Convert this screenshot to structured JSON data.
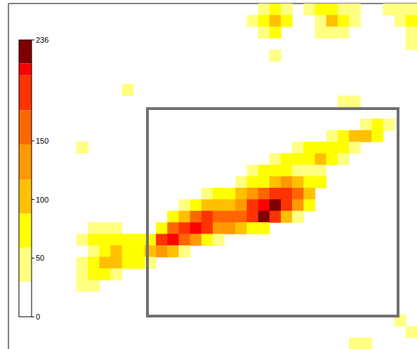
{
  "chart_data": {
    "type": "heatmap",
    "tick_labels": false,
    "xlim": [
      0,
      36
    ],
    "ylim": [
      0,
      30
    ],
    "colorbar": {
      "range": [
        0,
        236
      ],
      "ticks": [
        0,
        50,
        100,
        150,
        236
      ],
      "levels": [
        0,
        30,
        59,
        88,
        117,
        147,
        176,
        206,
        216,
        236
      ],
      "colors": [
        "#ffffff",
        "#ffff80",
        "#ffff00",
        "#ffc000",
        "#ff9900",
        "#ff6600",
        "#ff3300",
        "#ff0000",
        "#800000"
      ]
    },
    "cells": [
      [
        22,
        0,
        50
      ],
      [
        23,
        0,
        60
      ],
      [
        24,
        0,
        40
      ],
      [
        26,
        0,
        40
      ],
      [
        27,
        0,
        60
      ],
      [
        28,
        0,
        70
      ],
      [
        29,
        0,
        50
      ],
      [
        30,
        0,
        40
      ],
      [
        33,
        0,
        40
      ],
      [
        34,
        0,
        50
      ],
      [
        35,
        0,
        40
      ],
      [
        21,
        1,
        40
      ],
      [
        22,
        1,
        80
      ],
      [
        23,
        1,
        110
      ],
      [
        24,
        1,
        60
      ],
      [
        27,
        1,
        50
      ],
      [
        28,
        1,
        90
      ],
      [
        29,
        1,
        60
      ],
      [
        30,
        1,
        45
      ],
      [
        34,
        1,
        45
      ],
      [
        35,
        1,
        60
      ],
      [
        22,
        2,
        50
      ],
      [
        23,
        2,
        60
      ],
      [
        27,
        2,
        40
      ],
      [
        28,
        2,
        50
      ],
      [
        29,
        2,
        40
      ],
      [
        35,
        2,
        40
      ],
      [
        35,
        3,
        35
      ],
      [
        23,
        4,
        35
      ],
      [
        10,
        7,
        35
      ],
      [
        29,
        8,
        40
      ],
      [
        30,
        8,
        35
      ],
      [
        31,
        10,
        40
      ],
      [
        32,
        10,
        60
      ],
      [
        33,
        10,
        45
      ],
      [
        28,
        11,
        40
      ],
      [
        29,
        11,
        60
      ],
      [
        30,
        11,
        90
      ],
      [
        31,
        11,
        110
      ],
      [
        32,
        11,
        60
      ],
      [
        6,
        12,
        35
      ],
      [
        25,
        12,
        40
      ],
      [
        26,
        12,
        60
      ],
      [
        27,
        12,
        70
      ],
      [
        28,
        12,
        80
      ],
      [
        29,
        12,
        60
      ],
      [
        30,
        12,
        50
      ],
      [
        23,
        13,
        45
      ],
      [
        24,
        13,
        60
      ],
      [
        25,
        13,
        80
      ],
      [
        26,
        13,
        70
      ],
      [
        27,
        13,
        95
      ],
      [
        28,
        13,
        60
      ],
      [
        29,
        13,
        40
      ],
      [
        21,
        14,
        40
      ],
      [
        22,
        14,
        60
      ],
      [
        23,
        14,
        70
      ],
      [
        24,
        14,
        60
      ],
      [
        25,
        14,
        55
      ],
      [
        26,
        14,
        50
      ],
      [
        27,
        14,
        40
      ],
      [
        20,
        15,
        45
      ],
      [
        21,
        15,
        60
      ],
      [
        22,
        15,
        80
      ],
      [
        23,
        15,
        100
      ],
      [
        24,
        15,
        130
      ],
      [
        25,
        15,
        110
      ],
      [
        26,
        15,
        80
      ],
      [
        27,
        15,
        60
      ],
      [
        17,
        16,
        40
      ],
      [
        18,
        16,
        60
      ],
      [
        19,
        16,
        70
      ],
      [
        20,
        16,
        90
      ],
      [
        21,
        16,
        120
      ],
      [
        22,
        16,
        160
      ],
      [
        23,
        16,
        190
      ],
      [
        24,
        16,
        180
      ],
      [
        25,
        16,
        150
      ],
      [
        26,
        16,
        90
      ],
      [
        15,
        17,
        50
      ],
      [
        16,
        17,
        70
      ],
      [
        17,
        17,
        90
      ],
      [
        18,
        17,
        100
      ],
      [
        19,
        17,
        110
      ],
      [
        20,
        17,
        140
      ],
      [
        21,
        17,
        180
      ],
      [
        22,
        17,
        210
      ],
      [
        23,
        17,
        236
      ],
      [
        24,
        17,
        200
      ],
      [
        25,
        17,
        120
      ],
      [
        26,
        17,
        60
      ],
      [
        14,
        18,
        60
      ],
      [
        15,
        18,
        110
      ],
      [
        16,
        18,
        170
      ],
      [
        17,
        18,
        190
      ],
      [
        18,
        18,
        150
      ],
      [
        19,
        18,
        170
      ],
      [
        20,
        18,
        160
      ],
      [
        21,
        18,
        190
      ],
      [
        22,
        18,
        220
      ],
      [
        23,
        18,
        200
      ],
      [
        24,
        18,
        110
      ],
      [
        25,
        18,
        50
      ],
      [
        7,
        19,
        40
      ],
      [
        8,
        19,
        50
      ],
      [
        9,
        19,
        40
      ],
      [
        13,
        19,
        70
      ],
      [
        14,
        19,
        160
      ],
      [
        15,
        19,
        200
      ],
      [
        16,
        19,
        210
      ],
      [
        17,
        19,
        180
      ],
      [
        18,
        19,
        140
      ],
      [
        19,
        19,
        120
      ],
      [
        20,
        19,
        100
      ],
      [
        21,
        19,
        80
      ],
      [
        22,
        19,
        60
      ],
      [
        6,
        20,
        40
      ],
      [
        7,
        20,
        60
      ],
      [
        8,
        20,
        70
      ],
      [
        9,
        20,
        60
      ],
      [
        10,
        20,
        60
      ],
      [
        11,
        20,
        70
      ],
      [
        12,
        20,
        70
      ],
      [
        13,
        20,
        180
      ],
      [
        14,
        20,
        210
      ],
      [
        15,
        20,
        170
      ],
      [
        16,
        20,
        120
      ],
      [
        17,
        20,
        80
      ],
      [
        18,
        20,
        50
      ],
      [
        7,
        21,
        50
      ],
      [
        8,
        21,
        80
      ],
      [
        9,
        21,
        90
      ],
      [
        10,
        21,
        80
      ],
      [
        11,
        21,
        60
      ],
      [
        12,
        21,
        90
      ],
      [
        13,
        21,
        120
      ],
      [
        14,
        21,
        90
      ],
      [
        15,
        21,
        50
      ],
      [
        6,
        22,
        40
      ],
      [
        7,
        22,
        60
      ],
      [
        8,
        22,
        90
      ],
      [
        9,
        22,
        110
      ],
      [
        10,
        22,
        80
      ],
      [
        11,
        22,
        70
      ],
      [
        12,
        22,
        50
      ],
      [
        6,
        23,
        50
      ],
      [
        7,
        23,
        70
      ],
      [
        8,
        23,
        60
      ],
      [
        9,
        23,
        40
      ],
      [
        6,
        24,
        35
      ],
      [
        7,
        24,
        40
      ],
      [
        34,
        27,
        40
      ],
      [
        35,
        28,
        50
      ],
      [
        30,
        29,
        40
      ],
      [
        31,
        29,
        50
      ]
    ]
  }
}
